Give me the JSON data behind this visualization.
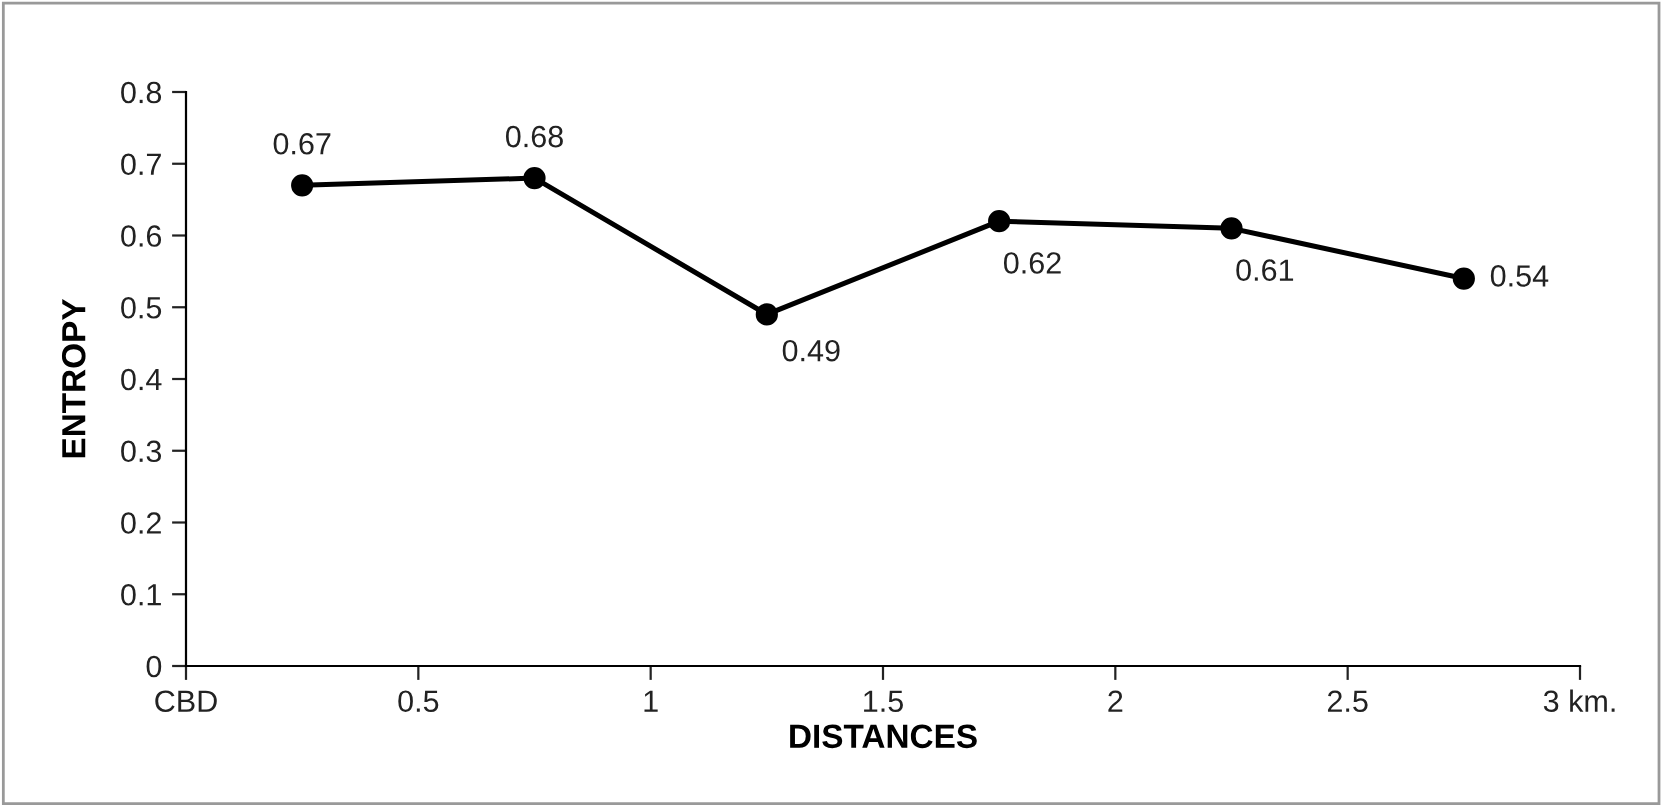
{
  "chart_data": {
    "type": "line",
    "xlabel": "DISTANCES",
    "ylabel": "ENTROPY",
    "x": [
      0.25,
      0.75,
      1.25,
      1.75,
      2.25,
      2.75
    ],
    "series": [
      {
        "color": "#000000",
        "values": [
          0.67,
          0.68,
          0.49,
          0.62,
          0.61,
          0.54
        ]
      }
    ],
    "xlim": [
      0,
      3
    ],
    "xticks": [
      {
        "value": 0,
        "label": "CBD"
      },
      0.5,
      1,
      1.5,
      2,
      2.5,
      {
        "value": 3,
        "label": "3 km."
      }
    ],
    "ylim": [
      0,
      0.8
    ],
    "yticks": [
      0,
      0.1,
      0.2,
      0.3,
      0.4,
      0.5,
      0.6,
      0.7,
      0.8
    ],
    "marker": "circle",
    "line_style": "solid",
    "grid": false,
    "legend": false,
    "data_labels": true
  }
}
